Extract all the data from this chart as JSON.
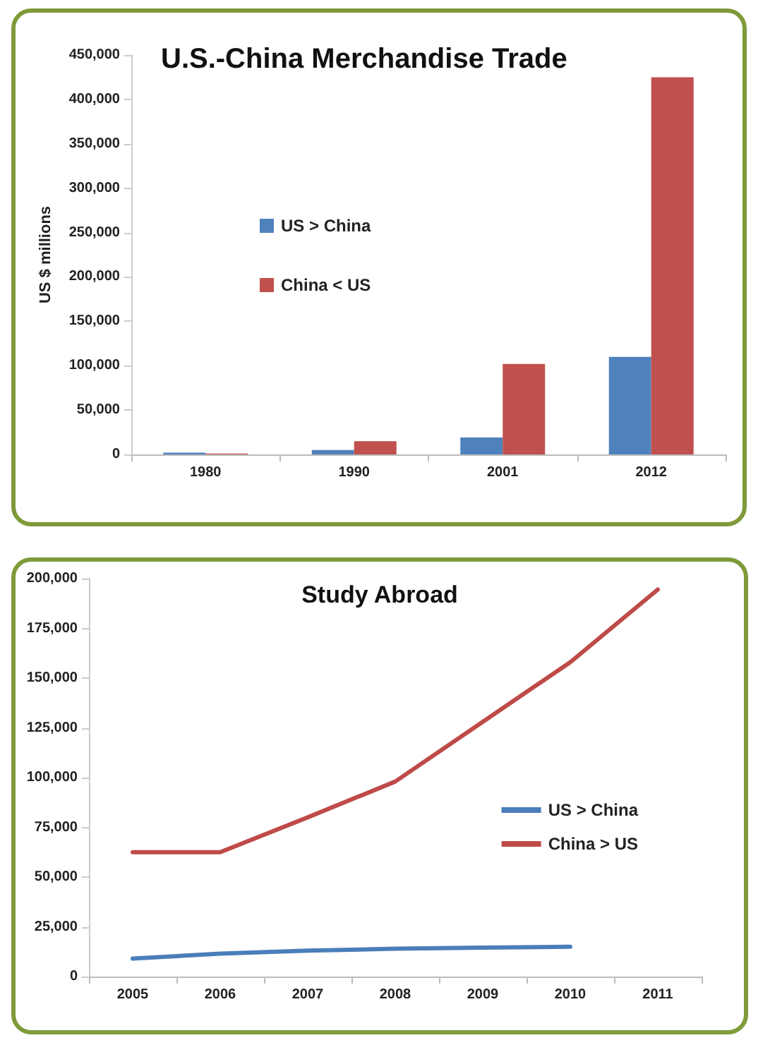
{
  "chart_data": [
    {
      "type": "bar",
      "title": "U.S.-China Merchandise Trade",
      "ylabel": "US $ millions",
      "categories": [
        "1980",
        "1990",
        "2001",
        "2012"
      ],
      "series": [
        {
          "name": "US > China",
          "color": "#4f81bd",
          "values": [
            2000,
            5000,
            19000,
            110000
          ]
        },
        {
          "name": "China < US",
          "color": "#c0504d",
          "values": [
            1000,
            15000,
            102000,
            425000
          ]
        }
      ],
      "ylim": [
        0,
        450000
      ],
      "yticks": [
        0,
        {
          "value": 50000,
          "label": "50,000"
        },
        {
          "value": 100000,
          "label": "100,000"
        },
        {
          "value": 150000,
          "label": "150,000"
        },
        {
          "value": 200000,
          "label": "200,000"
        },
        {
          "value": 250000,
          "label": "250,000"
        },
        {
          "value": 300000,
          "label": "300,000"
        },
        {
          "value": 350000,
          "label": "350,000"
        },
        {
          "value": 400000,
          "label": "400,000"
        },
        {
          "value": 450000,
          "label": "450,000"
        }
      ],
      "grid": false,
      "legend": "left"
    },
    {
      "type": "line",
      "title": "Study Abroad",
      "categories": [
        "2005",
        "2006",
        "2007",
        "2008",
        "2009",
        "2010",
        "2011"
      ],
      "series": [
        {
          "name": "US > China",
          "color": "#4a7ebb",
          "values": [
            9000,
            11500,
            13000,
            14000,
            14500,
            15000,
            null
          ]
        },
        {
          "name": "China > US",
          "color": "#be4b48",
          "values": [
            62500,
            62500,
            80000,
            98000,
            128000,
            158000,
            194500
          ]
        }
      ],
      "ylim": [
        0,
        200000
      ],
      "yticks": [
        0,
        {
          "value": 25000,
          "label": "25,000"
        },
        {
          "value": 50000,
          "label": "50,000"
        },
        {
          "value": 75000,
          "label": "75,000"
        },
        {
          "value": 100000,
          "label": "100,000"
        },
        {
          "value": 125000,
          "label": "125,000"
        },
        {
          "value": 150000,
          "label": "150,000"
        },
        {
          "value": 175000,
          "label": "175,000"
        },
        {
          "value": 200000,
          "label": "200,000"
        }
      ],
      "grid": false,
      "legend": "right",
      "marker": "none",
      "line_style": "solid"
    }
  ]
}
